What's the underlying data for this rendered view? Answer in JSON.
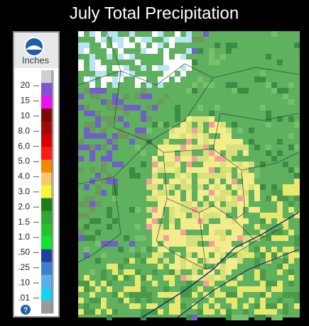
{
  "header": {
    "title": "July Total Precipitation"
  },
  "legend": {
    "unit": "Inches",
    "labels": [
      "20",
      "15",
      "10",
      "8.0",
      "6.0",
      "5.0",
      "4.0",
      "3.0",
      "2.0",
      "1.5",
      "1.0",
      ".50",
      ".25",
      ".10",
      ".01"
    ],
    "help": "?"
  }
}
